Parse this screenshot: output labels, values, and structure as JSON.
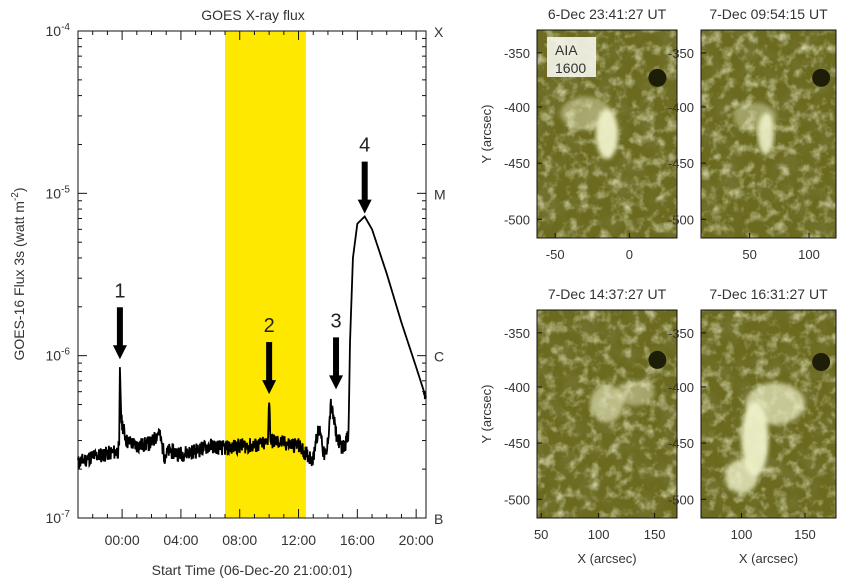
{
  "chart_data": [
    {
      "type": "line",
      "title": "GOES X-ray flux",
      "xlabel": "Start Time (06-Dec-20 21:00:01)",
      "ylabel": "GOES-16 Flux 3s (watt m⁻²)",
      "y_scale": "log",
      "ylim": [
        1e-07,
        0.0001
      ],
      "xlim_hours": [
        21.0,
        44.67
      ],
      "x_ticks": [
        "00:00",
        "04:00",
        "08:00",
        "12:00",
        "16:00",
        "20:00"
      ],
      "y_ticks": [
        {
          "base": "10",
          "exp": "-7"
        },
        {
          "base": "10",
          "exp": "-6"
        },
        {
          "base": "10",
          "exp": "-5"
        },
        {
          "base": "10",
          "exp": "-4"
        }
      ],
      "flare_classes": [
        "B",
        "C",
        "M",
        "X"
      ],
      "highlight_band_hours": [
        31.0,
        36.5
      ],
      "highlight_color": "#ffe800",
      "line_color": "#000000",
      "x_hours": [
        21.0,
        22.0,
        23.0,
        23.8,
        23.85,
        23.95,
        24.3,
        25.0,
        26.0,
        26.5,
        26.9,
        27.2,
        28.0,
        29.0,
        30.0,
        31.0,
        32.0,
        33.0,
        33.9,
        34.0,
        34.1,
        35.0,
        36.0,
        36.5,
        37.0,
        37.2,
        37.5,
        37.7,
        37.9,
        38.2,
        38.6,
        39.0,
        39.4,
        39.5,
        39.7,
        40.0,
        40.5,
        41.0,
        42.0,
        43.0,
        44.0,
        44.67
      ],
      "y_flux": [
        2.2e-07,
        2.4e-07,
        2.5e-07,
        2.6e-07,
        8.5e-07,
        4e-07,
        3e-07,
        2.8e-07,
        2.9e-07,
        3.4e-07,
        2.4e-07,
        2.6e-07,
        2.5e-07,
        2.6e-07,
        2.8e-07,
        2.7e-07,
        2.8e-07,
        2.8e-07,
        2.9e-07,
        5.5e-07,
        3e-07,
        2.9e-07,
        2.8e-07,
        2.5e-07,
        2.3e-07,
        3.2e-07,
        3.5e-07,
        2.5e-07,
        2.4e-07,
        5e-07,
        3.2e-07,
        2.7e-07,
        3.2e-07,
        1.2e-06,
        4e-06,
        6.5e-06,
        7.2e-06,
        6e-06,
        3.2e-06,
        1.6e-06,
        8.5e-07,
        5.5e-07
      ],
      "annotations": [
        {
          "label": "1",
          "x_hour": 23.85,
          "arrow_tip": 9.5e-07
        },
        {
          "label": "2",
          "x_hour": 34.0,
          "arrow_tip": 5.8e-07
        },
        {
          "label": "3",
          "x_hour": 38.55,
          "arrow_tip": 6.2e-07
        },
        {
          "label": "4",
          "x_hour": 40.5,
          "arrow_tip": 7.5e-06
        }
      ]
    },
    {
      "type": "image_grid",
      "instrument_label_line1": "AIA",
      "instrument_label_line2": "1600",
      "ylabel": "Y (arcsec)",
      "xlabel": "X (arcsec)",
      "y_ticks": [
        "-350",
        "-400",
        "-450",
        "-500"
      ],
      "panels": [
        {
          "title": "6-Dec  23:41:27 UT",
          "x_ticks": [
            "-50",
            "0"
          ],
          "has_ylabel": true,
          "has_xlabel": false
        },
        {
          "title": "7-Dec  09:54:15 UT",
          "x_ticks": [
            "50",
            "100"
          ],
          "has_ylabel": false,
          "has_xlabel": false
        },
        {
          "title": "7-Dec  14:37:27 UT",
          "x_ticks": [
            "50",
            "100",
            "150"
          ],
          "has_ylabel": true,
          "has_xlabel": true
        },
        {
          "title": "7-Dec  16:31:27 UT",
          "x_ticks": [
            "100",
            "150"
          ],
          "has_ylabel": false,
          "has_xlabel": true
        }
      ],
      "colormap_base": "#6b6a1f",
      "colormap_bright": "#eef0c8"
    }
  ]
}
